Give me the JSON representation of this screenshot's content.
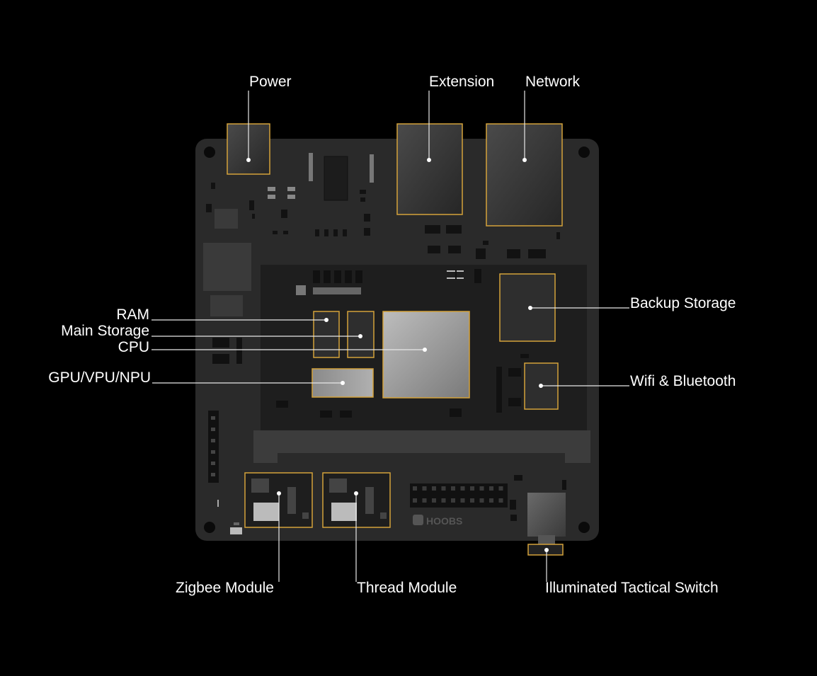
{
  "labels": {
    "power": "Power",
    "extension": "Extension",
    "network": "Network",
    "backup_storage": "Backup Storage",
    "ram": "RAM",
    "main_storage": "Main Storage",
    "cpu": "CPU",
    "gpu": "GPU/VPU/NPU",
    "wifi_bluetooth": "Wifi & Bluetooth",
    "zigbee_module": "Zigbee Module",
    "thread_module": "Thread Module",
    "illuminated_switch": "Illuminated Tactical Switch"
  },
  "board_brand": "HOOBS",
  "colors": {
    "background": "#000000",
    "board": "#2a2a2a",
    "module": "#1e1e1e",
    "highlight": "#d4a23a",
    "label": "#ffffff"
  }
}
